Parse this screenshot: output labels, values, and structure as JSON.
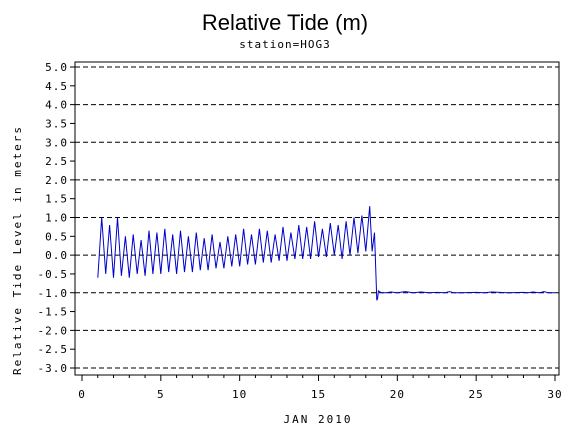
{
  "chart_data": {
    "type": "line",
    "title": "Relative Tide (m)",
    "subtitle": "station=HOG3",
    "xlabel": "JAN 2010",
    "ylabel": "Relative Tide Level in meters",
    "xlim": [
      0,
      30
    ],
    "ylim": [
      -3.0,
      5.0
    ],
    "x_ticks": [
      "0",
      "5",
      "10",
      "15",
      "20",
      "25",
      "30"
    ],
    "y_ticks": [
      "5.0",
      "4.5",
      "4.0",
      "3.5",
      "3.0",
      "2.5",
      "2.0",
      "1.5",
      "1.0",
      "0.5",
      "0.0",
      "-0.5",
      "-1.0",
      "-1.5",
      "-2.0",
      "-2.5",
      "-3.0"
    ],
    "grid": "horizontal dashed at whole meters",
    "series_color": "#0000cc",
    "series": [
      {
        "x": [
          1.0,
          1.25,
          1.5,
          1.75,
          2.0,
          2.25,
          2.5,
          2.75,
          3.0,
          3.25,
          3.5,
          3.75,
          4.0,
          4.25,
          4.5,
          4.75,
          5.0,
          5.25,
          5.5,
          5.75,
          6.0,
          6.25,
          6.5,
          6.75,
          7.0,
          7.25,
          7.5,
          7.75,
          8.0,
          8.25,
          8.5,
          8.75,
          9.0,
          9.25,
          9.5,
          9.75,
          10.0,
          10.25,
          10.5,
          10.75,
          11.0,
          11.25,
          11.5,
          11.75,
          12.0,
          12.25,
          12.5,
          12.75,
          13.0,
          13.25,
          13.5,
          13.75,
          14.0,
          14.25,
          14.5,
          14.75,
          15.0,
          15.25,
          15.5,
          15.75,
          16.0,
          16.25,
          16.5,
          16.75,
          17.0,
          17.25,
          17.5,
          17.75,
          18.0,
          18.25,
          18.4,
          18.55,
          18.7,
          18.75,
          18.8,
          18.9,
          19.0,
          19.3,
          19.6,
          20.0,
          20.5,
          21.0,
          21.5,
          22.0,
          22.5,
          23.0,
          23.3,
          23.6,
          24.0,
          25.0,
          25.5,
          26.0,
          27.0,
          28.0,
          28.3,
          28.6,
          29.0,
          29.3,
          29.6,
          30.0
        ],
        "y": [
          -0.6,
          1.0,
          -0.5,
          0.8,
          -0.6,
          1.0,
          -0.55,
          0.5,
          -0.6,
          0.55,
          -0.5,
          0.4,
          -0.55,
          0.65,
          -0.5,
          0.6,
          -0.5,
          0.7,
          -0.45,
          0.55,
          -0.5,
          0.65,
          -0.45,
          0.5,
          -0.45,
          0.6,
          -0.4,
          0.45,
          -0.4,
          0.55,
          -0.35,
          0.35,
          -0.35,
          0.5,
          -0.3,
          0.55,
          -0.3,
          0.7,
          -0.25,
          0.55,
          -0.25,
          0.7,
          -0.2,
          0.65,
          -0.2,
          0.55,
          -0.15,
          0.75,
          -0.15,
          0.6,
          -0.1,
          0.8,
          -0.1,
          0.75,
          -0.1,
          0.9,
          -0.05,
          0.7,
          -0.05,
          0.85,
          0.0,
          0.8,
          -0.1,
          0.9,
          0.0,
          1.0,
          0.05,
          1.05,
          0.1,
          1.3,
          0.1,
          0.6,
          -1.2,
          -1.15,
          -0.95,
          -0.98,
          -1.0,
          -1.0,
          -0.98,
          -1.0,
          -0.97,
          -1.0,
          -0.98,
          -1.0,
          -0.99,
          -1.0,
          -0.97,
          -1.0,
          -1.0,
          -0.99,
          -1.0,
          -0.98,
          -1.0,
          -0.99,
          -1.0,
          -0.98,
          -1.0,
          -0.97,
          -1.0,
          -1.0
        ]
      }
    ]
  }
}
